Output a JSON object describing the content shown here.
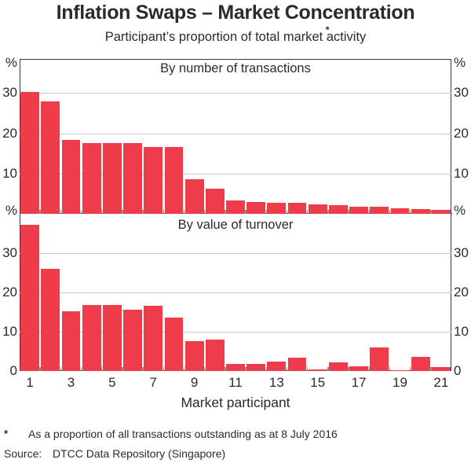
{
  "title": "Inflation Swaps – Market Concentration",
  "subtitle": {
    "pre": "Participant’s proportion of total market ",
    "marker": "*",
    "word": "activity"
  },
  "xlabel": "Market participant",
  "footnote": {
    "marker": "*",
    "text": "As a proportion of all transactions outstanding as at 8 July 2016"
  },
  "source": {
    "label": "Source:",
    "text": "DTCC Data Repository (Singapore)"
  },
  "axis": {
    "percent": "%",
    "xticks": [
      1,
      3,
      5,
      7,
      9,
      11,
      13,
      15,
      17,
      19,
      21
    ]
  },
  "colors": {
    "bar": "#EE3C4A",
    "grid": "#c9c9c9",
    "frame": "#3a3a3a",
    "tick": "#8f8f8f",
    "text": "#2b2b2b"
  },
  "chart_data": [
    {
      "type": "bar",
      "title": "By number of transactions",
      "xlabel": "Market participant",
      "ylabel": "%",
      "ylim": [
        0,
        38.5
      ],
      "yticks": [
        10,
        20,
        30
      ],
      "categories": [
        1,
        2,
        3,
        4,
        5,
        6,
        7,
        8,
        9,
        10,
        11,
        12,
        13,
        14,
        15,
        16,
        17,
        18,
        19,
        20,
        21
      ],
      "values": [
        30.3,
        28.0,
        18.3,
        17.6,
        17.6,
        17.6,
        16.6,
        16.6,
        8.6,
        6.2,
        3.4,
        3.0,
        2.8,
        2.7,
        2.3,
        2.1,
        1.8,
        1.7,
        1.4,
        1.2,
        1.0
      ]
    },
    {
      "type": "bar",
      "title": "By value of turnover",
      "xlabel": "Market participant",
      "ylabel": "%",
      "ylim": [
        0,
        40
      ],
      "yticks": [
        0,
        10,
        20,
        30
      ],
      "categories": [
        1,
        2,
        3,
        4,
        5,
        6,
        7,
        8,
        9,
        10,
        11,
        12,
        13,
        14,
        15,
        16,
        17,
        18,
        19,
        20,
        21
      ],
      "values": [
        37.3,
        26.0,
        15.2,
        16.8,
        16.8,
        15.7,
        16.6,
        13.7,
        7.6,
        8.1,
        1.8,
        1.8,
        2.5,
        3.5,
        0.4,
        2.2,
        1.2,
        6.0,
        0.2,
        3.7,
        1.0
      ]
    }
  ]
}
